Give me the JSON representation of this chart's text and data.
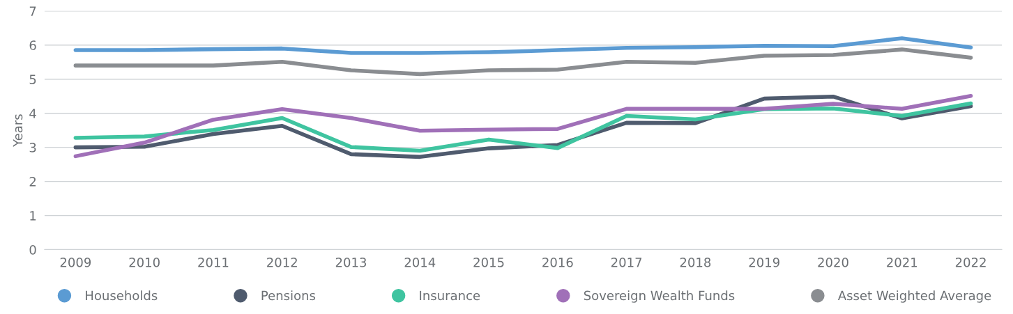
{
  "chart_data": {
    "type": "line",
    "ylabel": "Years",
    "categories": [
      "2009",
      "2010",
      "2011",
      "2012",
      "2013",
      "2014",
      "2015",
      "2016",
      "2017",
      "2018",
      "2019",
      "2020",
      "2021",
      "2022"
    ],
    "series": [
      {
        "name": "Households",
        "color": "#5b9bd3",
        "values": [
          5.85,
          5.85,
          5.88,
          5.9,
          5.77,
          5.77,
          5.79,
          5.85,
          5.92,
          5.94,
          5.98,
          5.97,
          6.2,
          5.93
        ]
      },
      {
        "name": "Pensions",
        "color": "#4f5b6e",
        "values": [
          3.0,
          3.02,
          3.39,
          3.63,
          2.8,
          2.72,
          2.97,
          3.07,
          3.72,
          3.71,
          4.43,
          4.49,
          3.85,
          4.21
        ]
      },
      {
        "name": "Insurance",
        "color": "#3fc4a0",
        "values": [
          3.28,
          3.32,
          3.51,
          3.86,
          3.01,
          2.9,
          3.23,
          2.98,
          3.92,
          3.82,
          4.12,
          4.14,
          3.92,
          4.29
        ]
      },
      {
        "name": "Sovereign Wealth Funds",
        "color": "#a070b8",
        "values": [
          2.74,
          3.14,
          3.81,
          4.12,
          3.86,
          3.49,
          3.52,
          3.54,
          4.13,
          4.13,
          4.13,
          4.28,
          4.13,
          4.51
        ]
      },
      {
        "name": "Asset Weighted Average",
        "color": "#8a8d91",
        "values": [
          5.4,
          5.4,
          5.4,
          5.51,
          5.26,
          5.15,
          5.26,
          5.28,
          5.51,
          5.48,
          5.69,
          5.71,
          5.87,
          5.63
        ]
      }
    ],
    "ylim": [
      0,
      7
    ],
    "yticks": [
      0,
      1,
      2,
      3,
      4,
      5,
      6,
      7
    ],
    "grid": "y",
    "legend": "bottom",
    "marker": "none",
    "line_style": "solid"
  }
}
